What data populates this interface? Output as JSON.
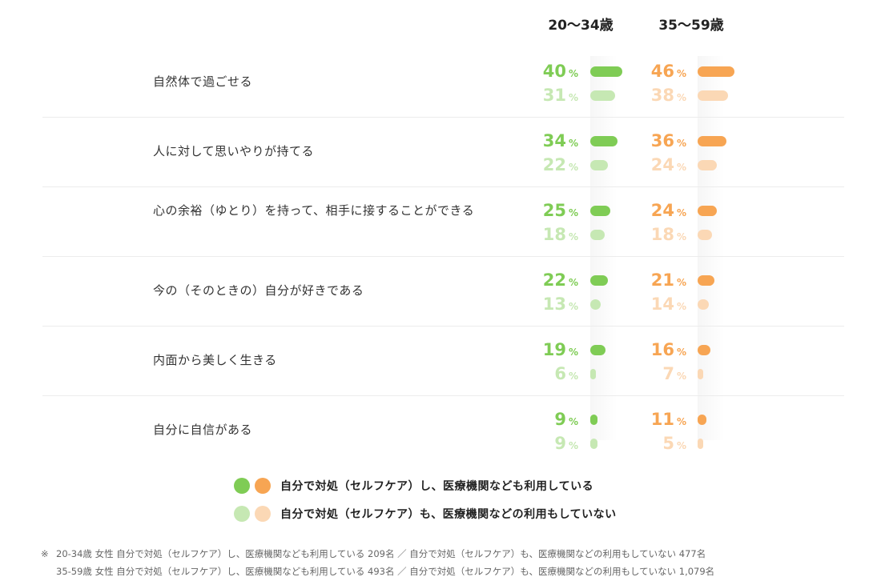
{
  "chart_data": {
    "type": "bar",
    "orientation": "horizontal",
    "unit": "%",
    "groups": [
      "20〜34歳",
      "35〜59歳"
    ],
    "categories": [
      "自然体で過ごせる",
      "人に対して思いやりが持てる",
      "心の余裕（ゆとり）を持って、相手に接することができる",
      "今の（そのときの）自分が好きである",
      "内面から美しく生きる",
      "自分に自信がある"
    ],
    "series": [
      {
        "name": "自分で対処（セルフケア）し、医療機関なども利用している",
        "group": "20〜34歳",
        "color": "#7fcc55",
        "values": [
          40,
          34,
          25,
          22,
          19,
          9
        ]
      },
      {
        "name": "自分で対処（セルフケア）も、医療機関などの利用もしていない",
        "group": "20〜34歳",
        "color": "#c6e8b3",
        "values": [
          31,
          22,
          18,
          13,
          6,
          9
        ]
      },
      {
        "name": "自分で対処（セルフケア）し、医療機関なども利用している",
        "group": "35〜59歳",
        "color": "#f7a553",
        "values": [
          46,
          36,
          24,
          21,
          16,
          11
        ]
      },
      {
        "name": "自分で対処（セルフケア）も、医療機関などの利用もしていない",
        "group": "35〜59歳",
        "color": "#fbd8b5",
        "values": [
          38,
          24,
          18,
          14,
          7,
          5
        ]
      }
    ],
    "xlim": [
      0,
      100
    ]
  },
  "legend": [
    {
      "label": "自分で対処（セルフケア）し、医療機関なども利用している",
      "colors": [
        "#7fcc55",
        "#f7a553"
      ]
    },
    {
      "label": "自分で対処（セルフケア）も、医療機関などの利用もしていない",
      "colors": [
        "#c6e8b3",
        "#fbd8b5"
      ]
    }
  ],
  "footnote": {
    "mark": "※",
    "line1": "20-34歳 女性 自分で対処（セルフケア）し、医療機関なども利用している 209名 ／ 自分で対処（セルフケア）も、医療機関などの利用もしていない 477名",
    "line2": "35-59歳 女性 自分で対処（セルフケア）し、医療機関なども利用している 493名 ／ 自分で対処（セルフケア）も、医療機関などの利用もしていない 1,079名"
  }
}
